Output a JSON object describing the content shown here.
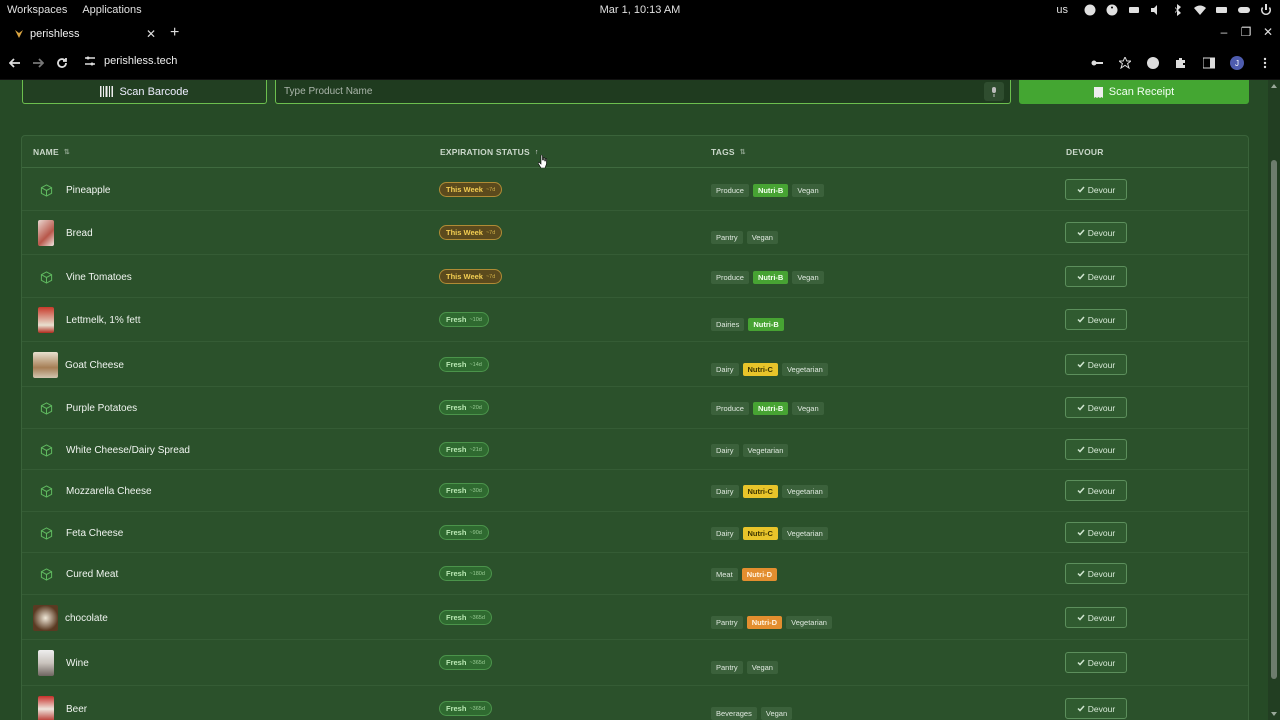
{
  "os": {
    "menu": [
      "Workspaces",
      "Applications"
    ],
    "clock": "Mar 1, 10:13 AM",
    "lang": "us",
    "tray_icons": [
      "steam-icon",
      "accessibility-icon",
      "display-icon",
      "volume-icon",
      "bluetooth-icon",
      "wifi-icon",
      "battery-icon",
      "controller-icon",
      "power-icon"
    ]
  },
  "browser": {
    "tab_title": "perishless",
    "url": "perishless.tech",
    "avatar_initial": "J"
  },
  "controls": {
    "scan_barcode_label": "Scan Barcode",
    "product_placeholder": "Type Product Name",
    "scan_receipt_label": "Scan Receipt"
  },
  "table": {
    "headers": {
      "name": "NAME",
      "expiration": "EXPIRATION STATUS",
      "tags": "TAGS",
      "devour": "DEVOUR"
    },
    "devour_label": "Devour",
    "rows": [
      {
        "name": "Pineapple",
        "thumb": "box-icon",
        "status": "This Week",
        "days": "~7d",
        "kind": "week",
        "tags": [
          "Produce",
          "Nutri-B",
          "Vegan"
        ]
      },
      {
        "name": "Bread",
        "thumb": "photo-bread",
        "status": "This Week",
        "days": "~7d",
        "kind": "week",
        "tags": [
          "Pantry",
          "Vegan"
        ]
      },
      {
        "name": "Vine Tomatoes",
        "thumb": "box-icon",
        "status": "This Week",
        "days": "~7d",
        "kind": "week",
        "tags": [
          "Produce",
          "Nutri-B",
          "Vegan"
        ]
      },
      {
        "name": "Lettmelk, 1% fett",
        "thumb": "photo-milk",
        "status": "Fresh",
        "days": "~10d",
        "kind": "fresh",
        "tags": [
          "Dairies",
          "Nutri-B"
        ]
      },
      {
        "name": "Goat Cheese",
        "thumb": "photo-cheese",
        "status": "Fresh",
        "days": "~14d",
        "kind": "fresh",
        "tags": [
          "Dairy",
          "Nutri-C",
          "Vegetarian"
        ]
      },
      {
        "name": "Purple Potatoes",
        "thumb": "box-icon",
        "status": "Fresh",
        "days": "~20d",
        "kind": "fresh",
        "tags": [
          "Produce",
          "Nutri-B",
          "Vegan"
        ]
      },
      {
        "name": "White Cheese/Dairy Spread",
        "thumb": "box-icon",
        "status": "Fresh",
        "days": "~21d",
        "kind": "fresh",
        "tags": [
          "Dairy",
          "Vegetarian"
        ]
      },
      {
        "name": "Mozzarella Cheese",
        "thumb": "box-icon",
        "status": "Fresh",
        "days": "~30d",
        "kind": "fresh",
        "tags": [
          "Dairy",
          "Nutri-C",
          "Vegetarian"
        ]
      },
      {
        "name": "Feta Cheese",
        "thumb": "box-icon",
        "status": "Fresh",
        "days": "~90d",
        "kind": "fresh",
        "tags": [
          "Dairy",
          "Nutri-C",
          "Vegetarian"
        ]
      },
      {
        "name": "Cured Meat",
        "thumb": "box-icon",
        "status": "Fresh",
        "days": "~180d",
        "kind": "fresh",
        "tags": [
          "Meat",
          "Nutri-D"
        ]
      },
      {
        "name": "chocolate",
        "thumb": "photo-chocolate",
        "status": "Fresh",
        "days": "~365d",
        "kind": "fresh",
        "tags": [
          "Pantry",
          "Nutri-D",
          "Vegetarian"
        ]
      },
      {
        "name": "Wine",
        "thumb": "photo-wine",
        "status": "Fresh",
        "days": "~365d",
        "kind": "fresh",
        "tags": [
          "Pantry",
          "Vegan"
        ]
      },
      {
        "name": "Beer",
        "thumb": "photo-beer",
        "status": "Fresh",
        "days": "~365d",
        "kind": "fresh",
        "tags": [
          "Beverages",
          "Vegan"
        ]
      }
    ]
  },
  "colors": {
    "background": "#264a26",
    "accent": "#44a632",
    "week_badge": "#f2cd52",
    "nutri_b": "#47a333",
    "nutri_c": "#e8c42a",
    "nutri_d": "#e38e2f"
  }
}
